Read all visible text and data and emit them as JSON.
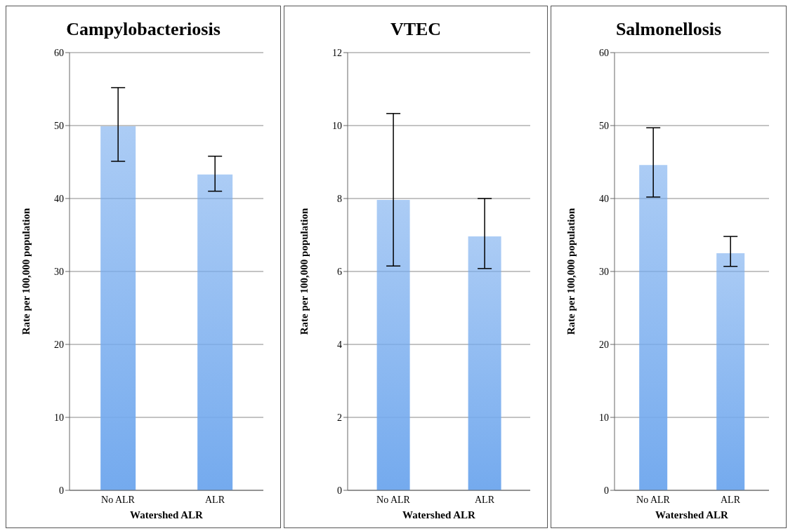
{
  "chart_data": [
    {
      "type": "bar",
      "title": "Campylobacteriosis",
      "xlabel": "Watershed ALR",
      "ylabel": "Rate per 100,000 population",
      "categories": [
        "No ALR",
        "ALR"
      ],
      "values": [
        49.9,
        43.3
      ],
      "errors": [
        [
          45.1,
          55.2
        ],
        [
          41.0,
          45.8
        ]
      ],
      "color": "#74aaee",
      "ylim": [
        0,
        60
      ],
      "yticks": [
        0,
        10,
        20,
        30,
        40,
        50,
        60
      ],
      "grid": "y",
      "legend": false
    },
    {
      "type": "bar",
      "title": "VTEC",
      "xlabel": "Watershed ALR",
      "ylabel": "Rate per 100,000 population",
      "categories": [
        "No ALR",
        "ALR"
      ],
      "values": [
        7.96,
        6.96
      ],
      "errors": [
        [
          6.15,
          10.33
        ],
        [
          6.08,
          8.0
        ]
      ],
      "color": "#74aaee",
      "ylim": [
        0,
        12
      ],
      "yticks": [
        0,
        2,
        4,
        6,
        8,
        10,
        12
      ],
      "grid": "y",
      "legend": false
    },
    {
      "type": "bar",
      "title": "Salmonellosis",
      "xlabel": "Watershed ALR",
      "ylabel": "Rate per 100,000 population",
      "categories": [
        "No ALR",
        "ALR"
      ],
      "values": [
        44.6,
        32.5
      ],
      "errors": [
        [
          40.2,
          49.7
        ],
        [
          30.7,
          34.8
        ]
      ],
      "color": "#74aaee",
      "ylim": [
        0,
        60
      ],
      "yticks": [
        0,
        10,
        20,
        30,
        40,
        50,
        60
      ],
      "grid": "y",
      "legend": false
    }
  ]
}
